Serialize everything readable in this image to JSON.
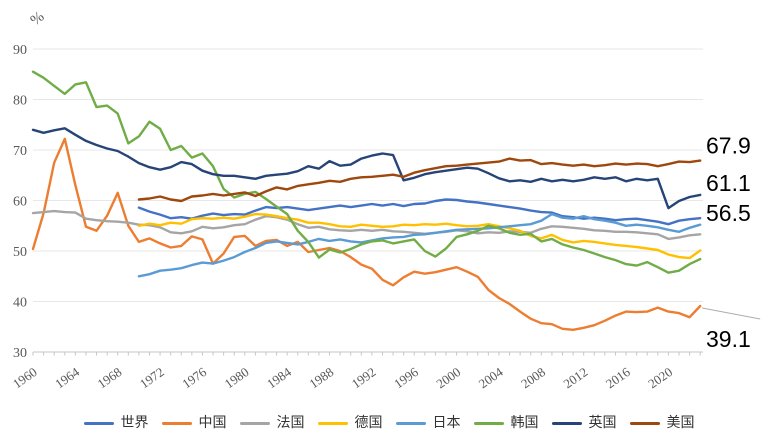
{
  "chart_data": {
    "type": "line",
    "title": "",
    "y_axis_title": "%",
    "x_range": [
      1960,
      2023
    ],
    "y_range": [
      30,
      90
    ],
    "y_ticks": [
      30,
      40,
      50,
      60,
      70,
      80,
      90
    ],
    "x_tick_labels": [
      "1960",
      "1964",
      "1968",
      "1972",
      "1976",
      "1980",
      "1984",
      "1988",
      "1992",
      "1996",
      "2000",
      "2004",
      "2008",
      "2012",
      "2016",
      "2020"
    ],
    "grid": "horizontal-only",
    "legend_position": "bottom",
    "colors": {
      "axis": "#C6C6C6",
      "grid": "#E7E7E7",
      "tick_label": "#595959",
      "end_label": "#000000",
      "leader_line": "#ADADAD"
    },
    "series": [
      {
        "id": "world",
        "name": "世界",
        "color": "#4472C4",
        "start_year": 1970,
        "values": [
          58.6,
          57.8,
          57.2,
          56.5,
          56.7,
          56.4,
          57.0,
          57.4,
          57.1,
          57.3,
          57.2,
          58.0,
          58.7,
          58.5,
          58.7,
          58.4,
          58.1,
          58.4,
          58.7,
          59.0,
          58.7,
          59.0,
          59.3,
          59.0,
          59.3,
          58.9,
          59.3,
          59.4,
          59.9,
          60.2,
          60.1,
          59.8,
          59.6,
          59.3,
          59.0,
          58.7,
          58.4,
          58.0,
          57.7,
          57.6,
          56.9,
          56.7,
          56.4,
          56.6,
          56.4,
          56.1,
          56.3,
          56.4,
          56.1,
          55.8,
          55.3,
          56.0,
          56.3,
          56.5
        ]
      },
      {
        "id": "china",
        "name": "中国",
        "color": "#ED7D31",
        "start_year": 1960,
        "values": [
          50.4,
          57.5,
          67.5,
          72.2,
          63.0,
          54.8,
          54.0,
          57.0,
          61.5,
          55.0,
          51.8,
          52.5,
          51.5,
          50.7,
          51.0,
          52.9,
          52.3,
          47.5,
          49.5,
          52.8,
          53.0,
          51.0,
          52.0,
          52.2,
          51.0,
          51.8,
          49.8,
          50.2,
          50.6,
          50.0,
          48.8,
          47.3,
          46.5,
          44.3,
          43.2,
          44.8,
          45.9,
          45.5,
          45.8,
          46.3,
          46.8,
          45.9,
          44.9,
          42.3,
          40.7,
          39.5,
          38.0,
          36.6,
          35.7,
          35.5,
          34.6,
          34.4,
          34.8,
          35.3,
          36.2,
          37.2,
          38.0,
          37.9,
          38.0,
          38.8,
          38.0,
          37.7,
          36.9,
          39.1
        ]
      },
      {
        "id": "france",
        "name": "法国",
        "color": "#A5A5A5",
        "start_year": 1960,
        "values": [
          57.5,
          57.7,
          57.9,
          57.7,
          57.6,
          56.4,
          56.1,
          55.9,
          55.8,
          55.6,
          55.2,
          55.1,
          54.7,
          53.7,
          53.5,
          53.9,
          54.8,
          54.5,
          54.7,
          55.1,
          55.3,
          56.2,
          56.9,
          56.7,
          56.2,
          55.3,
          54.6,
          54.8,
          54.3,
          54.1,
          54.0,
          54.2,
          54.0,
          54.2,
          53.9,
          53.8,
          53.6,
          53.4,
          53.6,
          53.8,
          54.1,
          53.9,
          53.5,
          53.7,
          53.6,
          53.9,
          53.8,
          53.6,
          54.4,
          54.9,
          54.8,
          54.6,
          54.4,
          54.1,
          54.0,
          53.8,
          53.8,
          53.7,
          53.5,
          53.3,
          52.4,
          52.7,
          53.1,
          53.3
        ]
      },
      {
        "id": "germany",
        "name": "德国",
        "color": "#FFC000",
        "start_year": 1970,
        "values": [
          55.0,
          55.4,
          55.1,
          55.6,
          55.4,
          56.3,
          56.5,
          56.4,
          56.6,
          56.4,
          56.8,
          57.3,
          57.2,
          56.9,
          56.5,
          56.2,
          55.6,
          55.6,
          55.3,
          54.9,
          54.8,
          55.2,
          55.0,
          54.8,
          54.9,
          55.2,
          55.1,
          55.3,
          55.2,
          55.4,
          55.1,
          54.9,
          55.0,
          55.3,
          54.9,
          54.5,
          54.0,
          53.0,
          52.5,
          53.2,
          52.2,
          51.7,
          52.0,
          51.8,
          51.5,
          51.2,
          51.0,
          50.8,
          50.5,
          50.2,
          49.3,
          48.8,
          48.6,
          50.1
        ]
      },
      {
        "id": "japan",
        "name": "日本",
        "color": "#5B9BD5",
        "start_year": 1970,
        "values": [
          45.0,
          45.4,
          46.1,
          46.3,
          46.6,
          47.2,
          47.7,
          47.5,
          48.1,
          48.8,
          49.8,
          50.6,
          51.6,
          51.9,
          51.6,
          51.3,
          51.8,
          52.4,
          52.0,
          52.3,
          51.9,
          51.7,
          52.1,
          52.5,
          52.7,
          52.8,
          53.2,
          53.3,
          53.6,
          53.9,
          54.2,
          54.3,
          54.4,
          54.5,
          54.7,
          54.9,
          55.1,
          55.3,
          56.0,
          57.3,
          56.6,
          56.4,
          56.9,
          56.3,
          56.0,
          55.6,
          55.0,
          55.2,
          55.0,
          54.7,
          54.2,
          53.8,
          54.6,
          55.2
        ]
      },
      {
        "id": "korea",
        "name": "韩国",
        "color": "#70AD47",
        "start_year": 1960,
        "values": [
          85.5,
          84.3,
          82.7,
          81.1,
          83.0,
          83.4,
          78.5,
          78.8,
          77.2,
          71.3,
          72.7,
          75.6,
          74.2,
          70.0,
          70.8,
          68.5,
          69.3,
          66.8,
          62.3,
          60.6,
          61.3,
          61.7,
          60.3,
          58.8,
          57.3,
          54.0,
          51.8,
          48.7,
          50.3,
          49.7,
          50.4,
          51.3,
          51.9,
          52.1,
          51.5,
          51.9,
          52.3,
          50.0,
          48.9,
          50.5,
          52.8,
          53.3,
          54.0,
          55.0,
          54.5,
          53.6,
          53.2,
          53.4,
          51.9,
          52.4,
          51.3,
          50.7,
          50.2,
          49.5,
          48.8,
          48.2,
          47.4,
          47.1,
          47.8,
          46.8,
          45.7,
          46.1,
          47.4,
          48.4
        ]
      },
      {
        "id": "uk",
        "name": "英国",
        "color": "#264478",
        "start_year": 1960,
        "values": [
          74.0,
          73.4,
          73.9,
          74.3,
          73.0,
          71.8,
          71.0,
          70.3,
          69.8,
          68.7,
          67.4,
          66.6,
          66.1,
          66.6,
          67.6,
          67.2,
          65.9,
          65.2,
          64.9,
          64.9,
          64.6,
          64.3,
          64.9,
          65.1,
          65.3,
          65.8,
          66.8,
          66.3,
          67.8,
          66.9,
          67.1,
          68.3,
          68.9,
          69.3,
          69.0,
          64.0,
          64.5,
          65.2,
          65.6,
          65.9,
          66.2,
          66.5,
          66.3,
          65.4,
          64.4,
          63.8,
          64.0,
          63.7,
          64.3,
          63.8,
          64.1,
          63.8,
          64.1,
          64.6,
          64.3,
          64.6,
          63.8,
          64.3,
          64.0,
          64.3,
          58.5,
          59.9,
          60.7,
          61.1
        ]
      },
      {
        "id": "usa",
        "name": "美国",
        "color": "#9E480E",
        "start_year": 1970,
        "values": [
          60.2,
          60.4,
          60.8,
          60.2,
          59.9,
          60.8,
          61.0,
          61.3,
          61.0,
          61.3,
          61.6,
          60.9,
          61.8,
          62.6,
          62.2,
          62.9,
          63.2,
          63.5,
          63.9,
          63.7,
          64.3,
          64.6,
          64.7,
          64.9,
          65.1,
          64.7,
          65.5,
          66.0,
          66.4,
          66.8,
          66.9,
          67.1,
          67.3,
          67.5,
          67.7,
          68.3,
          67.9,
          68.0,
          67.2,
          67.4,
          67.1,
          66.9,
          67.1,
          66.8,
          67.0,
          67.3,
          67.1,
          67.3,
          67.2,
          66.8,
          67.2,
          67.7,
          67.6,
          67.9
        ]
      }
    ],
    "end_labels": [
      {
        "series": "usa",
        "text": "67.9"
      },
      {
        "series": "uk",
        "text": "61.1"
      },
      {
        "series": "world",
        "text": "56.5"
      },
      {
        "series": "china",
        "text": "39.1",
        "leader": true
      }
    ]
  },
  "legend": {
    "items": [
      {
        "id": "world",
        "label": "世界",
        "color": "#4472C4"
      },
      {
        "id": "china",
        "label": "中国",
        "color": "#ED7D31"
      },
      {
        "id": "france",
        "label": "法国",
        "color": "#A5A5A5"
      },
      {
        "id": "germany",
        "label": "德国",
        "color": "#FFC000"
      },
      {
        "id": "japan",
        "label": "日本",
        "color": "#5B9BD5"
      },
      {
        "id": "korea",
        "label": "韩国",
        "color": "#70AD47"
      },
      {
        "id": "uk",
        "label": "英国",
        "color": "#264478"
      },
      {
        "id": "usa",
        "label": "美国",
        "color": "#9E480E"
      }
    ]
  }
}
